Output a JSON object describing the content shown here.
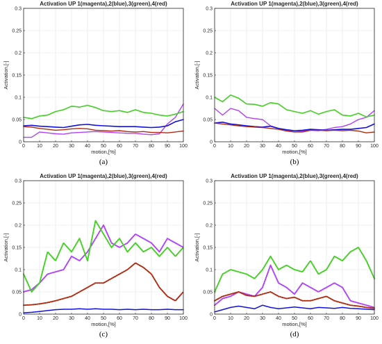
{
  "chart_data": [
    {
      "type": "line",
      "panel_label": "(a)",
      "title": "Activation UP 1(magenta),2(blue),3(green),4(red)",
      "xlabel": "motion,[%]",
      "ylabel": "Activation,[-]",
      "xlim": [
        0,
        100
      ],
      "ylim": [
        0,
        0.3
      ],
      "x_ticks": [
        "0",
        "10",
        "20",
        "30",
        "40",
        "50",
        "60",
        "70",
        "80",
        "90",
        "100"
      ],
      "y_ticks": [
        "0",
        "0.05",
        "0.1",
        "0.15",
        "0.2",
        "0.25",
        "0.3"
      ],
      "grid": true,
      "x": [
        0,
        5,
        10,
        15,
        20,
        25,
        30,
        35,
        40,
        45,
        50,
        55,
        60,
        65,
        70,
        75,
        80,
        85,
        90,
        95,
        100
      ],
      "series": [
        {
          "name": "1",
          "color": "#b040ff",
          "width": 1.4,
          "style": "line",
          "values": [
            0.01,
            0.01,
            0.022,
            0.02,
            0.018,
            0.017,
            0.02,
            0.021,
            0.022,
            0.023,
            0.022,
            0.021,
            0.02,
            0.019,
            0.019,
            0.017,
            0.016,
            0.018,
            0.04,
            0.055,
            0.085
          ]
        },
        {
          "name": "2",
          "color": "#1010e0",
          "width": 1.6,
          "style": "line",
          "values": [
            0.036,
            0.037,
            0.035,
            0.034,
            0.033,
            0.032,
            0.035,
            0.038,
            0.039,
            0.037,
            0.036,
            0.035,
            0.034,
            0.034,
            0.034,
            0.033,
            0.032,
            0.033,
            0.036,
            0.045,
            0.05
          ]
        },
        {
          "name": "3",
          "color": "#40d020",
          "width": 1.6,
          "style": "line",
          "values": [
            0.055,
            0.052,
            0.058,
            0.06,
            0.068,
            0.072,
            0.08,
            0.078,
            0.082,
            0.077,
            0.07,
            0.068,
            0.07,
            0.066,
            0.072,
            0.066,
            0.064,
            0.06,
            0.058,
            0.062,
            0.068
          ]
        },
        {
          "name": "4",
          "color": "#b02a10",
          "width": 1.4,
          "style": "line",
          "values": [
            0.034,
            0.033,
            0.03,
            0.028,
            0.026,
            0.027,
            0.029,
            0.03,
            0.029,
            0.026,
            0.025,
            0.024,
            0.025,
            0.023,
            0.022,
            0.023,
            0.021,
            0.021,
            0.02,
            0.022,
            0.024
          ]
        }
      ]
    },
    {
      "type": "line",
      "panel_label": "(b)",
      "title": "Activation UP 1(magenta),2(blue),3(green),4(red)",
      "xlabel": "motion,[%]",
      "ylabel": "Activation,[-]",
      "xlim": [
        0,
        100
      ],
      "ylim": [
        0,
        0.3
      ],
      "x_ticks": [
        "0",
        "10",
        "20",
        "30",
        "40",
        "50",
        "60",
        "70",
        "80",
        "90",
        "100"
      ],
      "y_ticks": [
        "0",
        "0.05",
        "0.1",
        "0.15",
        "0.2",
        "0.25",
        "0.3"
      ],
      "grid": true,
      "x": [
        0,
        5,
        10,
        15,
        20,
        25,
        30,
        35,
        40,
        45,
        50,
        55,
        60,
        65,
        70,
        75,
        80,
        85,
        90,
        95,
        100
      ],
      "series": [
        {
          "name": "1",
          "color": "#b040ff",
          "width": 1.4,
          "style": "line",
          "values": [
            0.075,
            0.06,
            0.075,
            0.07,
            0.055,
            0.052,
            0.05,
            0.036,
            0.03,
            0.026,
            0.022,
            0.024,
            0.026,
            0.025,
            0.028,
            0.032,
            0.034,
            0.04,
            0.05,
            0.055,
            0.07
          ]
        },
        {
          "name": "2",
          "color": "#1010e0",
          "width": 1.6,
          "style": "line",
          "values": [
            0.042,
            0.044,
            0.04,
            0.038,
            0.036,
            0.034,
            0.033,
            0.035,
            0.03,
            0.027,
            0.025,
            0.026,
            0.028,
            0.027,
            0.026,
            0.027,
            0.028,
            0.028,
            0.03,
            0.032,
            0.04
          ]
        },
        {
          "name": "3",
          "color": "#40d020",
          "width": 1.6,
          "style": "line",
          "values": [
            0.1,
            0.09,
            0.105,
            0.098,
            0.085,
            0.084,
            0.08,
            0.088,
            0.085,
            0.072,
            0.068,
            0.064,
            0.07,
            0.062,
            0.068,
            0.072,
            0.06,
            0.058,
            0.064,
            0.056,
            0.06
          ]
        },
        {
          "name": "4",
          "color": "#b02a10",
          "width": 1.4,
          "style": "line",
          "values": [
            0.042,
            0.04,
            0.038,
            0.036,
            0.034,
            0.033,
            0.032,
            0.03,
            0.028,
            0.024,
            0.022,
            0.022,
            0.026,
            0.026,
            0.025,
            0.026,
            0.025,
            0.026,
            0.024,
            0.02,
            0.022
          ]
        }
      ]
    },
    {
      "type": "line",
      "panel_label": "(c)",
      "title": "Activation UP 1(magenta),2(blue),3(green),4(red)",
      "xlabel": "motion,[%]",
      "ylabel": "Activation,[-]",
      "xlim": [
        0,
        100
      ],
      "ylim": [
        0,
        0.3
      ],
      "x_ticks": [
        "0",
        "10",
        "20",
        "30",
        "40",
        "50",
        "60",
        "70",
        "80",
        "90",
        "100"
      ],
      "y_ticks": [
        "0",
        "0.05",
        "0.1",
        "0.15",
        "0.2",
        "0.25",
        "0.3"
      ],
      "grid": true,
      "x": [
        0,
        5,
        10,
        15,
        20,
        25,
        30,
        35,
        40,
        45,
        50,
        55,
        60,
        65,
        70,
        75,
        80,
        85,
        90,
        95,
        100
      ],
      "series": [
        {
          "name": "1",
          "color": "#b040ff",
          "width": 1.6,
          "style": "dotted",
          "values": [
            0.05,
            0.055,
            0.07,
            0.09,
            0.095,
            0.1,
            0.13,
            0.12,
            0.14,
            0.17,
            0.2,
            0.16,
            0.15,
            0.16,
            0.18,
            0.17,
            0.16,
            0.14,
            0.17,
            0.16,
            0.15
          ]
        },
        {
          "name": "2",
          "color": "#1010e0",
          "width": 1.5,
          "style": "line",
          "values": [
            0.003,
            0.004,
            0.006,
            0.008,
            0.01,
            0.011,
            0.011,
            0.012,
            0.011,
            0.012,
            0.011,
            0.011,
            0.01,
            0.011,
            0.01,
            0.011,
            0.01,
            0.01,
            0.011,
            0.01,
            0.01
          ]
        },
        {
          "name": "3",
          "color": "#40d020",
          "width": 1.6,
          "style": "dotted",
          "values": [
            0.09,
            0.05,
            0.07,
            0.14,
            0.12,
            0.16,
            0.14,
            0.17,
            0.12,
            0.21,
            0.18,
            0.15,
            0.17,
            0.14,
            0.16,
            0.14,
            0.15,
            0.13,
            0.15,
            0.13,
            0.15
          ]
        },
        {
          "name": "4",
          "color": "#b02a10",
          "width": 1.6,
          "style": "dotted",
          "values": [
            0.02,
            0.021,
            0.023,
            0.026,
            0.03,
            0.035,
            0.04,
            0.05,
            0.06,
            0.07,
            0.07,
            0.08,
            0.09,
            0.1,
            0.115,
            0.105,
            0.09,
            0.06,
            0.04,
            0.03,
            0.05
          ]
        }
      ]
    },
    {
      "type": "line",
      "panel_label": "(d)",
      "title": "Activation UP 1(magenta),2(blue),3(green),4(red)",
      "xlabel": "motion,[%]",
      "ylabel": "Activation,[-]",
      "xlim": [
        0,
        100
      ],
      "ylim": [
        0,
        0.3
      ],
      "x_ticks": [
        "0",
        "10",
        "20",
        "30",
        "40",
        "50",
        "60",
        "70",
        "80",
        "90",
        "100"
      ],
      "y_ticks": [
        "0",
        "0.05",
        "0.1",
        "0.15",
        "0.2",
        "0.25",
        "0.3"
      ],
      "grid": true,
      "x": [
        0,
        5,
        10,
        15,
        20,
        25,
        30,
        35,
        40,
        45,
        50,
        55,
        60,
        65,
        70,
        75,
        80,
        85,
        90,
        95,
        100
      ],
      "series": [
        {
          "name": "1",
          "color": "#b040ff",
          "width": 1.6,
          "style": "dotted",
          "values": [
            0.02,
            0.035,
            0.04,
            0.05,
            0.045,
            0.04,
            0.06,
            0.11,
            0.07,
            0.06,
            0.045,
            0.07,
            0.06,
            0.05,
            0.06,
            0.07,
            0.06,
            0.03,
            0.025,
            0.02,
            0.015
          ]
        },
        {
          "name": "2",
          "color": "#1010e0",
          "width": 1.5,
          "style": "line",
          "values": [
            0.005,
            0.01,
            0.015,
            0.018,
            0.015,
            0.012,
            0.02,
            0.015,
            0.012,
            0.014,
            0.016,
            0.014,
            0.012,
            0.015,
            0.014,
            0.013,
            0.015,
            0.013,
            0.012,
            0.011,
            0.01
          ]
        },
        {
          "name": "3",
          "color": "#40d020",
          "width": 1.6,
          "style": "dotted",
          "values": [
            0.05,
            0.09,
            0.1,
            0.095,
            0.09,
            0.08,
            0.1,
            0.13,
            0.1,
            0.11,
            0.1,
            0.095,
            0.12,
            0.09,
            0.1,
            0.13,
            0.12,
            0.14,
            0.15,
            0.12,
            0.08
          ]
        },
        {
          "name": "4",
          "color": "#b02a10",
          "width": 1.6,
          "style": "dotted",
          "values": [
            0.03,
            0.04,
            0.045,
            0.05,
            0.042,
            0.04,
            0.045,
            0.05,
            0.04,
            0.035,
            0.038,
            0.03,
            0.03,
            0.035,
            0.04,
            0.03,
            0.025,
            0.02,
            0.018,
            0.015,
            0.013
          ]
        }
      ]
    }
  ]
}
